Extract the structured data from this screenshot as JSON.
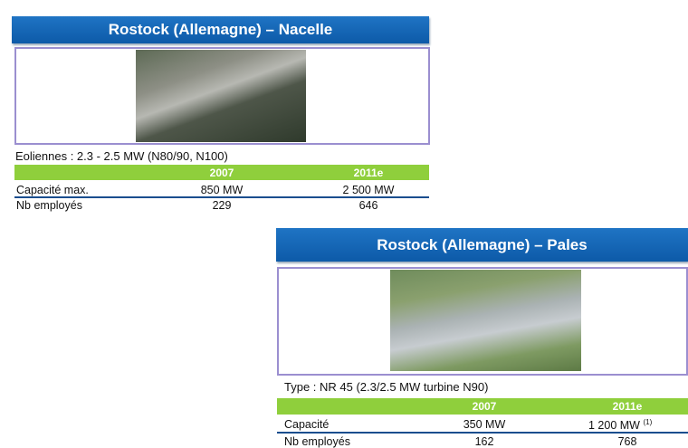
{
  "panels": [
    {
      "title": "Rostock (Allemagne) – Nacelle",
      "caption": "Eoliennes : 2.3 - 2.5 MW (N80/90, N100)",
      "table": {
        "header": [
          "2007",
          "2011e"
        ],
        "rows": [
          {
            "label": "Capacité max.",
            "cells": [
              "850 MW",
              "2 500 MW"
            ]
          },
          {
            "label": "Nb employés",
            "cells": [
              "229",
              "646"
            ]
          }
        ]
      }
    },
    {
      "title": "Rostock (Allemagne) – Pales",
      "caption": "Type : NR 45 (2.3/2.5 MW turbine N90)",
      "table": {
        "header": [
          "2007",
          "2011e"
        ],
        "rows": [
          {
            "label": "Capacité",
            "cells": [
              "350 MW",
              "1 200 MW"
            ],
            "note": "(1)"
          },
          {
            "label": "Nb employés",
            "cells": [
              "162",
              "768"
            ]
          }
        ]
      }
    }
  ]
}
